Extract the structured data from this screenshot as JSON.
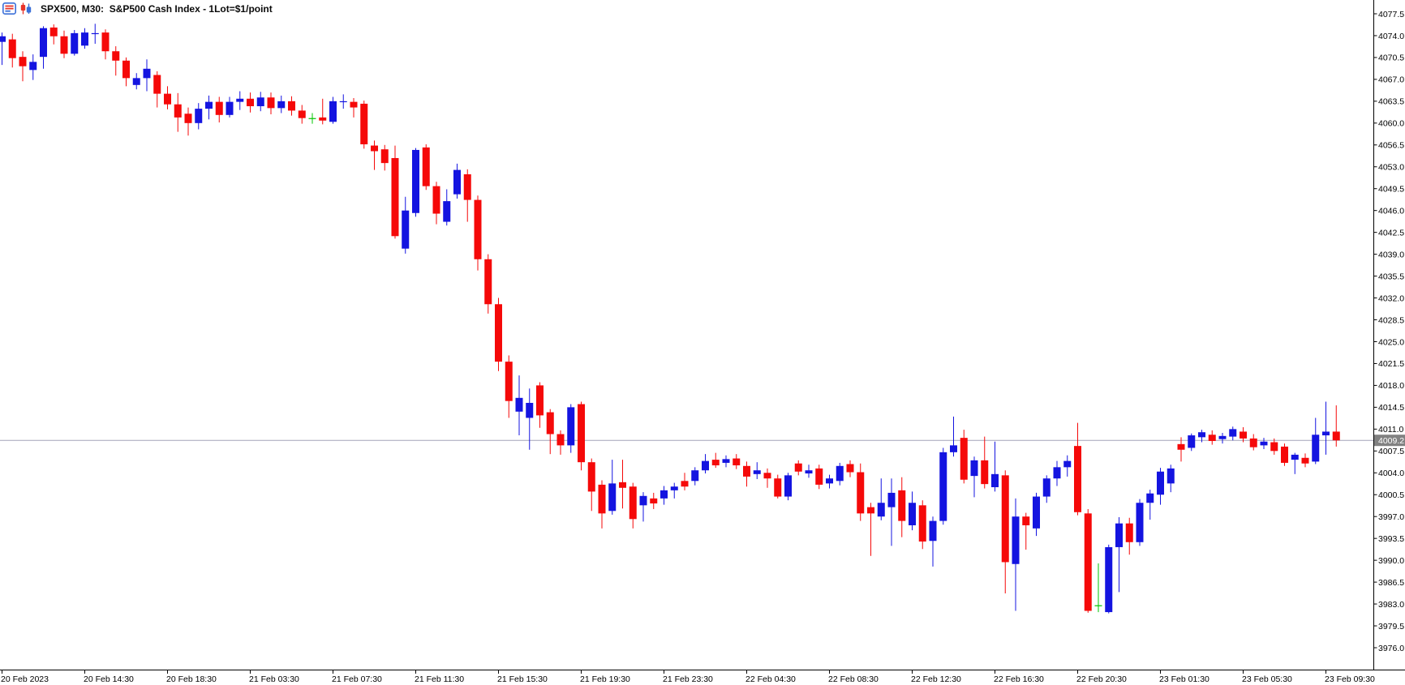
{
  "header": {
    "title": "SPX500, M30:  S&P500 Cash Index - 1Lot=$1/point",
    "icons": [
      "quotes-list-icon",
      "candle-chart-icon"
    ]
  },
  "current_price": {
    "value": "4009.2"
  },
  "colors": {
    "bull": "#1414e0",
    "bear": "#f50909",
    "doji_green": "#00c400",
    "price_line": "#a3a3b8",
    "badge_bg": "#818181",
    "badge_text": "#ffffff",
    "axis": "#000000",
    "label_text": "#000000",
    "background": "#ffffff",
    "icon_red": "#e8342a",
    "icon_blue": "#3a6fd8"
  },
  "y_axis": {
    "labels": [
      "4077.5",
      "4074.0",
      "4070.5",
      "4067.0",
      "4063.5",
      "4060.0",
      "4056.5",
      "4053.0",
      "4049.5",
      "4046.0",
      "4042.5",
      "4039.0",
      "4035.5",
      "4032.0",
      "4028.5",
      "4025.0",
      "4021.5",
      "4018.0",
      "4014.5",
      "4011.0",
      "4007.5",
      "4004.0",
      "4000.5",
      "3997.0",
      "3993.5",
      "3990.0",
      "3986.5",
      "3983.0",
      "3979.5",
      "3976.0"
    ]
  },
  "x_axis": {
    "ticks": [
      {
        "bar": 0,
        "label": "20 Feb 2023"
      },
      {
        "bar": 8,
        "label": "20 Feb 14:30"
      },
      {
        "bar": 16,
        "label": "20 Feb 18:30"
      },
      {
        "bar": 24,
        "label": "21 Feb 03:30"
      },
      {
        "bar": 32,
        "label": "21 Feb 07:30"
      },
      {
        "bar": 40,
        "label": "21 Feb 11:30"
      },
      {
        "bar": 48,
        "label": "21 Feb 15:30"
      },
      {
        "bar": 56,
        "label": "21 Feb 19:30"
      },
      {
        "bar": 64,
        "label": "21 Feb 23:30"
      },
      {
        "bar": 72,
        "label": "22 Feb 04:30"
      },
      {
        "bar": 80,
        "label": "22 Feb 08:30"
      },
      {
        "bar": 88,
        "label": "22 Feb 12:30"
      },
      {
        "bar": 96,
        "label": "22 Feb 16:30"
      },
      {
        "bar": 104,
        "label": "22 Feb 20:30"
      },
      {
        "bar": 112,
        "label": "23 Feb 01:30"
      },
      {
        "bar": 120,
        "label": "23 Feb 05:30"
      },
      {
        "bar": 128,
        "label": "23 Feb 09:30"
      }
    ]
  },
  "chart_data": {
    "type": "candlestick",
    "symbol": "SPX500",
    "timeframe": "M30",
    "title": "S&P500 Cash Index - 1Lot=$1/point",
    "y_min": 3976.0,
    "y_max": 4077.5,
    "y_step": 3.5,
    "current_price": 4009.2,
    "grid": false,
    "green_doji_bars": [
      30,
      106
    ],
    "bars": [
      [
        4073.0,
        4074.5,
        4069.3,
        4073.9
      ],
      [
        4073.4,
        4074.3,
        4068.9,
        4070.4
      ],
      [
        4070.6,
        4071.5,
        4066.7,
        4069.1
      ],
      [
        4068.5,
        4071.0,
        4066.9,
        4069.8
      ],
      [
        4070.6,
        4075.5,
        4068.7,
        4075.2
      ],
      [
        4075.3,
        4075.8,
        4072.6,
        4073.9
      ],
      [
        4073.9,
        4074.8,
        4070.4,
        4071.1
      ],
      [
        4071.1,
        4074.9,
        4070.8,
        4074.4
      ],
      [
        4072.4,
        4075.2,
        4071.9,
        4074.5
      ],
      [
        4074.3,
        4075.9,
        4072.7,
        4074.4
      ],
      [
        4074.5,
        4075.0,
        4070.2,
        4071.5
      ],
      [
        4071.5,
        4072.3,
        4067.6,
        4070.0
      ],
      [
        4070.0,
        4070.5,
        4065.9,
        4067.2
      ],
      [
        4066.1,
        4068.0,
        4065.4,
        4067.2
      ],
      [
        4067.2,
        4070.2,
        4065.1,
        4068.7
      ],
      [
        4067.7,
        4068.3,
        4062.5,
        4064.7
      ],
      [
        4064.7,
        4065.9,
        4062.2,
        4063.0
      ],
      [
        4063.0,
        4064.8,
        4058.6,
        4060.9
      ],
      [
        4061.5,
        4062.5,
        4058.0,
        4060.0
      ],
      [
        4060.0,
        4063.2,
        4059.0,
        4062.3
      ],
      [
        4062.3,
        4064.4,
        4060.6,
        4063.4
      ],
      [
        4063.4,
        4064.2,
        4060.1,
        4061.3
      ],
      [
        4061.3,
        4064.2,
        4060.9,
        4063.4
      ],
      [
        4063.4,
        4065.1,
        4062.1,
        4063.9
      ],
      [
        4063.9,
        4064.9,
        4061.7,
        4062.7
      ],
      [
        4062.7,
        4065.0,
        4061.9,
        4064.1
      ],
      [
        4064.1,
        4064.9,
        4061.4,
        4062.4
      ],
      [
        4062.4,
        4064.4,
        4061.6,
        4063.5
      ],
      [
        4063.5,
        4064.3,
        4061.2,
        4062.0
      ],
      [
        4062.0,
        4062.9,
        4059.9,
        4060.8
      ],
      [
        4060.8,
        4061.6,
        4059.9,
        4060.8
      ],
      [
        4060.9,
        4063.9,
        4059.8,
        4060.4
      ],
      [
        4060.2,
        4064.2,
        4059.9,
        4063.5
      ],
      [
        4063.4,
        4064.6,
        4062.3,
        4063.5
      ],
      [
        4063.4,
        4064.0,
        4060.9,
        4062.5
      ],
      [
        4063.1,
        4063.6,
        4055.9,
        4056.6
      ],
      [
        4056.4,
        4057.2,
        4052.5,
        4055.5
      ],
      [
        4055.8,
        4056.5,
        4052.4,
        4053.6
      ],
      [
        4054.4,
        4056.4,
        4041.5,
        4041.9
      ],
      [
        4039.9,
        4048.2,
        4039.1,
        4046.0
      ],
      [
        4045.6,
        4056.0,
        4045.0,
        4055.7
      ],
      [
        4056.1,
        4056.6,
        4049.3,
        4049.9
      ],
      [
        4049.9,
        4050.6,
        4043.8,
        4045.5
      ],
      [
        4044.2,
        4049.4,
        4043.6,
        4047.5
      ],
      [
        4048.6,
        4053.5,
        4047.9,
        4052.5
      ],
      [
        4051.8,
        4052.6,
        4044.2,
        4047.7
      ],
      [
        4047.7,
        4048.4,
        4036.4,
        4038.2
      ],
      [
        4038.2,
        4039.0,
        4029.5,
        4031.0
      ],
      [
        4031.0,
        4032.0,
        4020.3,
        4021.8
      ],
      [
        4021.8,
        4022.8,
        4012.8,
        4015.5
      ],
      [
        4013.8,
        4019.6,
        4010.0,
        4016.0
      ],
      [
        4012.8,
        4017.5,
        4007.7,
        4015.2
      ],
      [
        4018.0,
        4018.5,
        4011.2,
        4013.2
      ],
      [
        4013.7,
        4014.2,
        4007.0,
        4010.2
      ],
      [
        4010.2,
        4010.8,
        4006.9,
        4008.4
      ],
      [
        4008.4,
        4015.0,
        4007.2,
        4014.5
      ],
      [
        4015.0,
        4015.4,
        4004.4,
        4005.7
      ],
      [
        4005.7,
        4006.3,
        3997.9,
        4001.0
      ],
      [
        4002.1,
        4002.8,
        3995.1,
        3997.5
      ],
      [
        3997.9,
        4006.1,
        3997.3,
        4002.3
      ],
      [
        4002.5,
        4006.1,
        3998.3,
        4001.6
      ],
      [
        4001.8,
        4002.4,
        3995.1,
        3996.6
      ],
      [
        3998.8,
        4000.9,
        3996.2,
        4000.3
      ],
      [
        3999.9,
        4000.8,
        3998.2,
        3999.1
      ],
      [
        3999.9,
        4001.9,
        3998.9,
        4001.2
      ],
      [
        4001.2,
        4002.4,
        3999.9,
        4001.8
      ],
      [
        4002.7,
        4004.0,
        4001.2,
        4001.8
      ],
      [
        4002.7,
        4004.9,
        4002.0,
        4004.4
      ],
      [
        4004.4,
        4007.0,
        4003.9,
        4005.9
      ],
      [
        4006.1,
        4007.2,
        4004.8,
        4005.2
      ],
      [
        4005.6,
        4006.8,
        4004.9,
        4006.2
      ],
      [
        4006.3,
        4007.0,
        4004.6,
        4005.2
      ],
      [
        4005.1,
        4005.8,
        4001.8,
        4003.4
      ],
      [
        4003.8,
        4005.7,
        4003.0,
        4004.4
      ],
      [
        4004.0,
        4004.7,
        4001.6,
        4003.1
      ],
      [
        4003.1,
        4003.7,
        3999.9,
        4000.2
      ],
      [
        4000.2,
        4004.0,
        3999.6,
        4003.6
      ],
      [
        4005.5,
        4006.0,
        4003.6,
        4004.2
      ],
      [
        4003.9,
        4005.3,
        4003.2,
        4004.4
      ],
      [
        4004.7,
        4005.3,
        4001.4,
        4002.1
      ],
      [
        4002.3,
        4003.7,
        4001.5,
        4003.1
      ],
      [
        4002.7,
        4005.6,
        4002.0,
        4005.1
      ],
      [
        4005.4,
        4006.0,
        4003.3,
        4004.1
      ],
      [
        4004.1,
        4005.5,
        3996.3,
        3997.5
      ],
      [
        3998.5,
        3999.2,
        3990.7,
        3997.5
      ],
      [
        3997.0,
        4003.1,
        3996.4,
        3999.2
      ],
      [
        3998.5,
        4003.1,
        3992.3,
        4000.8
      ],
      [
        4001.2,
        4003.3,
        3993.7,
        3996.3
      ],
      [
        3995.6,
        4001.0,
        3994.8,
        3999.2
      ],
      [
        3998.8,
        3999.6,
        3991.8,
        3993.0
      ],
      [
        3993.1,
        3997.0,
        3989.0,
        3996.3
      ],
      [
        3996.3,
        4008.0,
        3995.7,
        4007.3
      ],
      [
        4007.3,
        4013.0,
        4006.6,
        4008.4
      ],
      [
        4009.6,
        4010.9,
        4002.3,
        4002.9
      ],
      [
        4003.5,
        4006.6,
        4000.1,
        4006.0
      ],
      [
        4006.0,
        4009.8,
        4001.5,
        4002.2
      ],
      [
        4001.7,
        4009.0,
        4001.0,
        4003.8
      ],
      [
        4003.6,
        4004.4,
        3984.7,
        3989.7
      ],
      [
        3989.4,
        3999.9,
        3981.9,
        3997.0
      ],
      [
        3997.0,
        3997.6,
        3991.7,
        3995.6
      ],
      [
        3995.1,
        4000.8,
        3993.9,
        4000.2
      ],
      [
        4000.2,
        4003.6,
        3999.2,
        4003.1
      ],
      [
        4003.1,
        4005.9,
        4001.9,
        4004.9
      ],
      [
        4004.9,
        4006.8,
        4003.4,
        4005.9
      ],
      [
        4008.3,
        4012.0,
        3997.2,
        3997.7
      ],
      [
        3997.5,
        3998.2,
        3981.6,
        3981.9
      ],
      [
        3982.8,
        3989.5,
        3981.7,
        3982.8
      ],
      [
        3981.7,
        3992.5,
        3981.5,
        3992.1
      ],
      [
        3992.1,
        3996.9,
        3984.9,
        3995.9
      ],
      [
        3995.9,
        3996.8,
        3990.9,
        3992.9
      ],
      [
        3992.9,
        3999.8,
        3992.3,
        3999.2
      ],
      [
        3999.2,
        4001.3,
        3996.5,
        4000.7
      ],
      [
        4000.5,
        4004.8,
        3998.9,
        4004.2
      ],
      [
        4002.3,
        4005.3,
        4000.9,
        4004.7
      ],
      [
        4008.6,
        4009.7,
        4005.8,
        4007.7
      ],
      [
        4008.0,
        4010.3,
        4007.5,
        4010.0
      ],
      [
        4009.7,
        4010.9,
        4008.9,
        4010.5
      ],
      [
        4010.1,
        4010.8,
        4008.5,
        4009.1
      ],
      [
        4009.4,
        4010.4,
        4008.7,
        4009.9
      ],
      [
        4009.8,
        4011.4,
        4009.2,
        4011.0
      ],
      [
        4010.6,
        4011.3,
        4008.9,
        4009.5
      ],
      [
        4009.5,
        4010.2,
        4007.6,
        4008.1
      ],
      [
        4008.4,
        4009.6,
        4007.8,
        4009.0
      ],
      [
        4008.9,
        4009.5,
        4006.9,
        4007.5
      ],
      [
        4008.2,
        4008.7,
        4005.1,
        4005.6
      ],
      [
        4006.1,
        4007.2,
        4003.8,
        4006.9
      ],
      [
        4006.4,
        4007.1,
        4004.9,
        4005.5
      ],
      [
        4005.8,
        4012.8,
        4005.4,
        4010.1
      ],
      [
        4010.0,
        4015.4,
        4006.9,
        4010.6
      ],
      [
        4010.6,
        4014.8,
        4008.2,
        4009.2
      ]
    ]
  }
}
